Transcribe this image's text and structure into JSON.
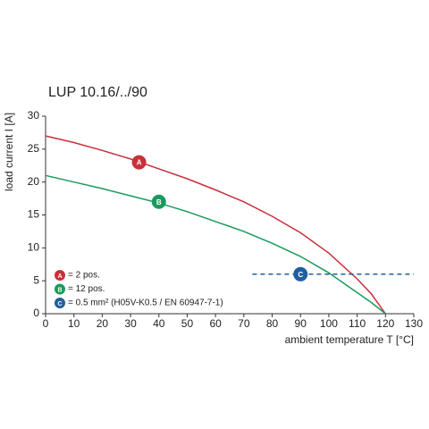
{
  "chart_data": {
    "type": "line",
    "title": "LUP 10.16/../90",
    "xlabel": "ambient temperature T [°C]",
    "ylabel": "load current I [A]",
    "xlim": [
      0,
      130
    ],
    "xticks": [
      0,
      10,
      20,
      30,
      40,
      50,
      60,
      70,
      80,
      90,
      100,
      110,
      120,
      130
    ],
    "ylim": [
      0,
      30
    ],
    "yticks": [
      0,
      5,
      10,
      15,
      20,
      25,
      30
    ],
    "series": [
      {
        "name": "= 2 pos.",
        "color": "#c8303a",
        "dash": false,
        "x": [
          0,
          10,
          20,
          30,
          40,
          50,
          60,
          70,
          80,
          90,
          100,
          110,
          115,
          120
        ],
        "values": [
          27,
          26,
          24.8,
          23.5,
          22,
          20.5,
          18.8,
          17,
          14.8,
          12.3,
          9.2,
          5.3,
          3,
          0
        ],
        "marker": {
          "label": "A",
          "x": 33,
          "y": 23
        }
      },
      {
        "name": "= 12 pos.",
        "color": "#1a9a5c",
        "dash": false,
        "x": [
          0,
          10,
          20,
          30,
          40,
          50,
          60,
          70,
          80,
          90,
          100,
          110,
          115,
          120
        ],
        "values": [
          21,
          20,
          19,
          17.9,
          16.8,
          15.5,
          14,
          12.5,
          10.7,
          8.7,
          6.2,
          3.2,
          1.7,
          0
        ],
        "marker": {
          "label": "B",
          "x": 40,
          "y": 17
        }
      },
      {
        "name": "= 0.5 mm² (H05V-K0.5 / EN 60947-7-1)",
        "color": "#1f5fa0",
        "dash": true,
        "x": [
          73,
          130
        ],
        "values": [
          6,
          6
        ],
        "marker": {
          "label": "C",
          "x": 90,
          "y": 6
        }
      }
    ]
  }
}
